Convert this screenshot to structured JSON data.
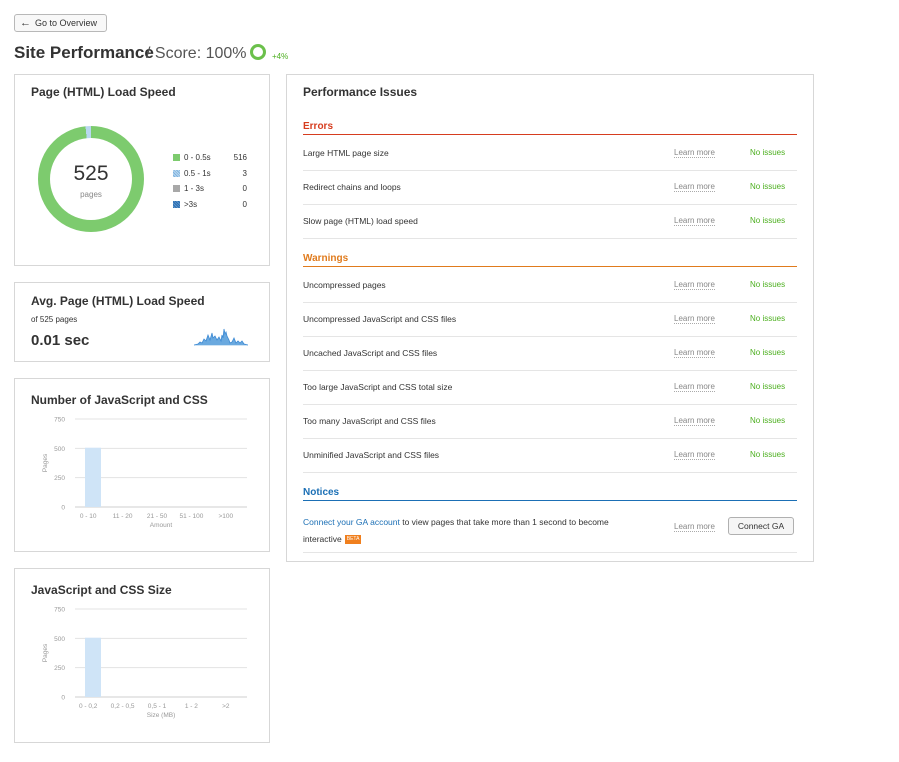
{
  "back_button": {
    "label": "Go to Overview"
  },
  "header": {
    "title": "Site Performance",
    "score": "/ Score: 100%",
    "delta": "+4%"
  },
  "load_speed": {
    "title": "Page (HTML) Load Speed",
    "total": "525",
    "total_label": "pages",
    "legend": [
      {
        "label": "0 - 0.5s",
        "value": "516",
        "color": "#7dcb6e"
      },
      {
        "label": "0.5 - 1s",
        "value": "3",
        "color": "#b9d8f0"
      },
      {
        "label": "1 - 3s",
        "value": "0",
        "color": "#a8a8a8"
      },
      {
        "label": ">3s",
        "value": "0",
        "color": "#2a6db0"
      }
    ]
  },
  "avg_speed": {
    "title": "Avg. Page (HTML) Load Speed",
    "subtitle": "of 525 pages",
    "value": "0.01 sec"
  },
  "js_css_count": {
    "title": "Number of JavaScript and CSS",
    "chart_data": {
      "type": "bar",
      "title": "Number of JavaScript and CSS",
      "xlabel": "Amount",
      "ylabel": "Pages",
      "categories": [
        "0 - 10",
        "11 - 20",
        "21 - 50",
        "51 - 100",
        ">100"
      ],
      "values": [
        505,
        0,
        0,
        0,
        0
      ],
      "yticks": [
        "0",
        "250",
        "500",
        "750"
      ],
      "ylim": [
        0,
        750
      ],
      "color": "#cfe4f7"
    }
  },
  "js_css_size": {
    "title": "JavaScript and CSS Size",
    "chart_data": {
      "type": "bar",
      "title": "JavaScript and CSS Size",
      "xlabel": "Size (MB)",
      "ylabel": "Pages",
      "categories": [
        "0 - 0,2",
        "0,2 - 0,5",
        "0,5 - 1",
        "1 - 2",
        ">2"
      ],
      "values": [
        505,
        0,
        0,
        0,
        0
      ],
      "yticks": [
        "0",
        "250",
        "500",
        "750"
      ],
      "ylim": [
        0,
        750
      ],
      "color": "#cfe4f7"
    }
  },
  "issues": {
    "title": "Performance Issues",
    "learn_more": "Learn more",
    "errors": {
      "heading": "Errors",
      "items": [
        {
          "name": "Large HTML page size",
          "status": "No issues"
        },
        {
          "name": "Redirect chains and loops",
          "status": "No issues"
        },
        {
          "name": "Slow page (HTML) load speed",
          "status": "No issues"
        }
      ]
    },
    "warnings": {
      "heading": "Warnings",
      "items": [
        {
          "name": "Uncompressed pages",
          "status": "No issues"
        },
        {
          "name": "Uncompressed JavaScript and CSS files",
          "status": "No issues"
        },
        {
          "name": "Uncached JavaScript and CSS files",
          "status": "No issues"
        },
        {
          "name": "Too large JavaScript and CSS total size",
          "status": "No issues"
        },
        {
          "name": "Too many JavaScript and CSS files",
          "status": "No issues"
        },
        {
          "name": "Unminified JavaScript and CSS files",
          "status": "No issues"
        }
      ]
    },
    "notices": {
      "heading": "Notices",
      "link_text": "Connect your GA account",
      "text": " to view pages that take more than 1 second to become interactive",
      "badge": "BETA",
      "button": "Connect GA"
    }
  }
}
